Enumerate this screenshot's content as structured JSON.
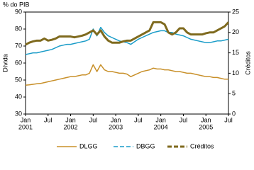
{
  "chart_data": {
    "type": "line",
    "y_unit_label": "% do PIB",
    "ylabel": "Dívida",
    "y2label": "Créditos",
    "x": [
      "2001-01",
      "2001-02",
      "2001-03",
      "2001-04",
      "2001-05",
      "2001-06",
      "2001-07",
      "2001-08",
      "2001-09",
      "2001-10",
      "2001-11",
      "2001-12",
      "2002-01",
      "2002-02",
      "2002-03",
      "2002-04",
      "2002-05",
      "2002-06",
      "2002-07",
      "2002-08",
      "2002-09",
      "2002-10",
      "2002-11",
      "2002-12",
      "2003-01",
      "2003-02",
      "2003-03",
      "2003-04",
      "2003-05",
      "2003-06",
      "2003-07",
      "2003-08",
      "2003-09",
      "2003-10",
      "2003-11",
      "2003-12",
      "2004-01",
      "2004-02",
      "2004-03",
      "2004-04",
      "2004-05",
      "2004-06",
      "2004-07",
      "2004-08",
      "2004-09",
      "2004-10",
      "2004-11",
      "2004-12",
      "2005-01",
      "2005-02",
      "2005-03",
      "2005-04",
      "2005-05",
      "2005-06",
      "2005-07"
    ],
    "series": [
      {
        "name": "DLGG",
        "color": "#c8902a",
        "dash": "",
        "width": 1.5,
        "values": [
          47,
          47.2,
          47.5,
          47.8,
          48,
          48.5,
          49,
          49.5,
          50,
          50.5,
          51,
          51.5,
          52,
          52,
          52.5,
          53,
          53,
          54,
          59,
          55,
          59,
          56,
          55,
          55,
          54.5,
          54,
          54,
          53.5,
          52,
          53,
          54,
          55,
          55.5,
          56,
          57,
          56.5,
          56.5,
          56,
          56,
          55.5,
          55,
          55,
          54.5,
          54,
          54,
          53.5,
          53,
          52.5,
          52,
          52,
          51.5,
          51.5,
          51,
          50.5,
          50.5
        ]
      },
      {
        "name": "DBGG",
        "color": "#1a9cc8",
        "dash": "",
        "width": 1.5,
        "values": [
          65,
          65.5,
          66,
          66,
          66.5,
          67,
          67.5,
          68,
          69,
          70,
          70.5,
          71,
          71,
          71.5,
          72,
          72.5,
          73,
          74,
          80,
          76,
          81,
          78,
          76,
          75,
          74,
          73,
          72.5,
          72,
          71,
          72.5,
          74,
          75,
          76,
          77,
          78,
          78.5,
          79,
          79,
          78,
          78,
          77,
          76.5,
          76,
          75,
          74,
          73.5,
          73,
          72.5,
          72,
          72,
          72.5,
          73,
          73,
          73.5,
          74
        ]
      },
      {
        "name": "Créditos",
        "color": "#7f6a1e",
        "dash": "",
        "width": 3,
        "axis": "y2",
        "values": [
          17,
          17.5,
          17.8,
          18,
          18,
          18.5,
          18,
          18.2,
          18.5,
          19,
          19,
          19,
          19,
          18.8,
          19,
          19.2,
          19.5,
          20,
          20.5,
          19.5,
          20.5,
          19,
          18,
          17.5,
          17.5,
          17.5,
          17.8,
          18,
          18,
          18.5,
          19,
          19.5,
          20,
          20.5,
          22.5,
          22.5,
          22.5,
          22,
          20,
          19.5,
          20,
          21,
          21,
          20,
          19.5,
          19.5,
          19.5,
          19.5,
          19.8,
          20,
          20,
          20.5,
          21,
          21.5,
          22.5
        ]
      }
    ],
    "legend_dash": [
      "",
      "6,3",
      "6,3"
    ],
    "xlim": [
      "2001-01",
      "2005-07"
    ],
    "xticks": [
      {
        "value": "2001-01",
        "label": [
          "Jan",
          "2001"
        ]
      },
      {
        "value": "2001-07",
        "label": [
          "Jul"
        ]
      },
      {
        "value": "2002-01",
        "label": [
          "Jan",
          "2002"
        ]
      },
      {
        "value": "2002-07",
        "label": [
          "Jul"
        ]
      },
      {
        "value": "2003-01",
        "label": [
          "Jan",
          "2003"
        ]
      },
      {
        "value": "2003-07",
        "label": [
          "Jul"
        ]
      },
      {
        "value": "2004-01",
        "label": [
          "Jan",
          "2004"
        ]
      },
      {
        "value": "2004-07",
        "label": [
          "Jul"
        ]
      },
      {
        "value": "2005-01",
        "label": [
          "Jan",
          "2005"
        ]
      },
      {
        "value": "2005-07",
        "label": [
          "Jul"
        ]
      }
    ],
    "ylim": [
      30,
      90
    ],
    "yticks": [
      30,
      40,
      50,
      60,
      70,
      80,
      90
    ],
    "y2lim": [
      0,
      25
    ],
    "y2ticks": [
      0,
      5,
      10,
      15,
      20,
      25
    ]
  }
}
